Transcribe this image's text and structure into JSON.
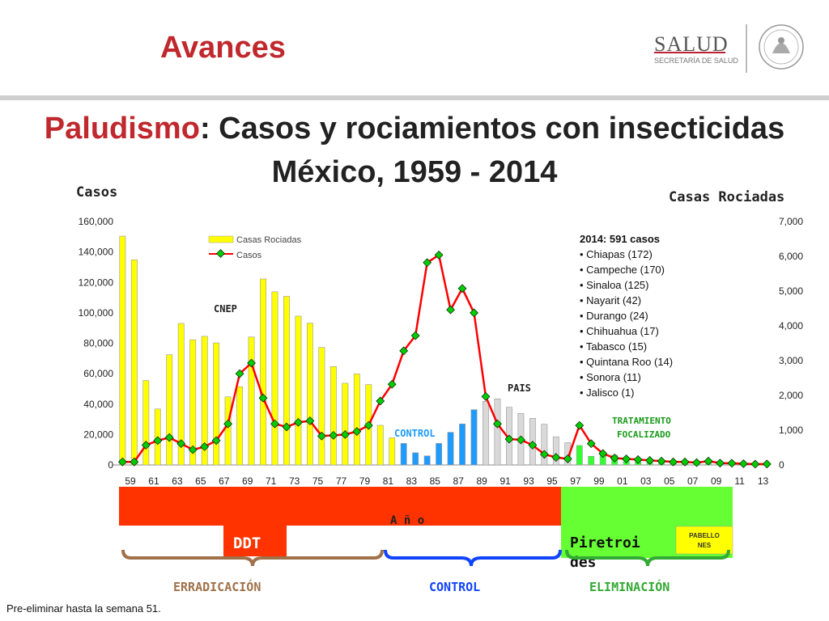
{
  "header": {
    "section_title": "Avances",
    "logo_text": "SALUD",
    "logo_subtext": "SECRETARÍA DE SALUD"
  },
  "title": {
    "highlight": "Paludismo",
    "rest": ": Casos y rociamientos con insecticidas",
    "line2": "México, 1959 - 2014"
  },
  "axis": {
    "left_title": "Casos",
    "right_title": "Casas Rociadas"
  },
  "legend": {
    "bars": "Casas Rociadas",
    "line": "Casos"
  },
  "annotations": {
    "cnep": "CNEP",
    "control": "CONTROL",
    "pais": "PAIS",
    "tratamiento1": "TRATAMIENTO",
    "tratamiento2": "FOCALIZADO"
  },
  "info_box": {
    "heading": "2014:   591 casos",
    "items": [
      "Chiapas (172)",
      "Campeche (170)",
      "Sinaloa (125)",
      "Nayarit (42)",
      "Durango (24)",
      "Chihuahua (17)",
      "Tabasco (15)",
      "Quintana Roo (14)",
      "Sonora (11)",
      "Jalisco (1)"
    ]
  },
  "timeline": {
    "ano": "A ñ o",
    "ddt": "DDT",
    "piretroides": "Piretroides",
    "pabellones": "PABELLONES",
    "eras": [
      "ERRADICACIÓN",
      "CONTROL",
      "ELIMINACIÓN"
    ]
  },
  "footer": "Pre-eliminar hasta la semana 51.",
  "colors": {
    "accent_red": "#c0282d",
    "bar_yellow": "#ffff00",
    "bar_blue": "#1e9bff",
    "bar_gray": "#d9d9d9",
    "bar_green": "#33ff33",
    "line_red": "#ff0000",
    "marker_green": "#00cc00",
    "timeline_red": "#ff3300",
    "timeline_green": "#66ff33"
  },
  "chart_data": {
    "type": "bar+line",
    "years": [
      1959,
      1960,
      1961,
      1962,
      1963,
      1964,
      1965,
      1966,
      1967,
      1968,
      1969,
      1970,
      1971,
      1972,
      1973,
      1974,
      1975,
      1976,
      1977,
      1978,
      1979,
      1980,
      1981,
      1982,
      1983,
      1984,
      1985,
      1986,
      1987,
      1988,
      1989,
      1990,
      1991,
      1992,
      1993,
      1994,
      1995,
      1996,
      1997,
      1998,
      1999,
      2000,
      2001,
      2002,
      2003,
      2004,
      2005,
      2006,
      2007,
      2008,
      2009,
      2010,
      2011,
      2012,
      2013,
      2014
    ],
    "x_tick_labels": [
      "59",
      "61",
      "63",
      "65",
      "67",
      "69",
      "71",
      "73",
      "75",
      "77",
      "79",
      "81",
      "83",
      "85",
      "87",
      "89",
      "91",
      "93",
      "95",
      "97",
      "99",
      "01",
      "03",
      "05",
      "07",
      "09",
      "11",
      "13"
    ],
    "left_axis": {
      "min": 0,
      "max": 160000,
      "ticks": [
        "0",
        "20,000",
        "40,000",
        "60,000",
        "80,000",
        "100,000",
        "120,000",
        "140,000",
        "160,000"
      ]
    },
    "right_axis": {
      "min": 0,
      "max": 7000,
      "ticks": [
        "0",
        "1,000",
        "2,000",
        "3,000",
        "4,000",
        "5,000",
        "6,000",
        "7,000"
      ]
    },
    "series": [
      {
        "name": "Casas Rociadas",
        "axis": "right",
        "kind": "bar",
        "values": [
          6580,
          5900,
          2430,
          1610,
          3170,
          4070,
          3600,
          3700,
          3510,
          1960,
          2250,
          3680,
          5350,
          4980,
          4850,
          4280,
          4080,
          3380,
          2830,
          2350,
          2620,
          2310,
          1140,
          780,
          620,
          350,
          260,
          620,
          940,
          1180,
          1590,
          1830,
          1900,
          1660,
          1480,
          1340,
          1170,
          810,
          640,
          560,
          250,
          260,
          280,
          200,
          130,
          100,
          80,
          70,
          60,
          60,
          50,
          50,
          40,
          30,
          30,
          20
        ]
      },
      {
        "name": "Casos",
        "axis": "left",
        "kind": "line",
        "values": [
          2000,
          2000,
          13000,
          16000,
          18000,
          14000,
          10000,
          12000,
          16000,
          27000,
          60000,
          67000,
          44000,
          27000,
          25000,
          28000,
          29000,
          19000,
          19500,
          20000,
          22000,
          26000,
          42000,
          53000,
          75000,
          85000,
          133000,
          138000,
          102000,
          116000,
          100000,
          45000,
          27000,
          17000,
          16500,
          13000,
          7000,
          5000,
          4000,
          26000,
          14000,
          7500,
          4500,
          4000,
          3500,
          3000,
          2500,
          2000,
          2000,
          1500,
          2500,
          1200,
          1100,
          800,
          500,
          591
        ]
      }
    ],
    "bar_color_groups": {
      "yellow_until": 1982,
      "blue_until": 1989,
      "gray_until": 1997,
      "green_after": 1997
    }
  }
}
